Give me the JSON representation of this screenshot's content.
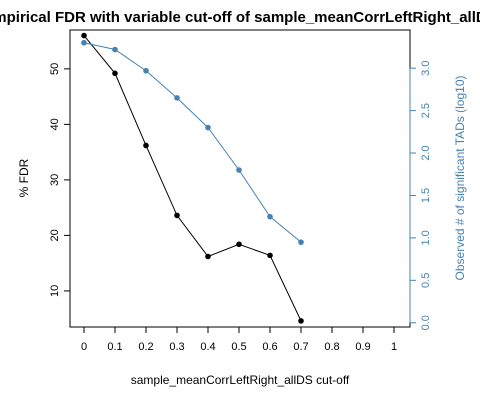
{
  "chart_data": {
    "type": "line",
    "title": "Empirical FDR with variable cut-off of sample_meanCorrLeftRight_allDS",
    "xlabel": "sample_meanCorrLeftRight_allDS cut-off",
    "ylabel_left": "% FDR",
    "ylabel_right": "Observed # of significant TADs (log10)",
    "x_ticks": [
      "0",
      "0.1",
      "0.2",
      "0.3",
      "0.4",
      "0.5",
      "0.6",
      "0.7",
      "0.8",
      "0.9",
      "1"
    ],
    "y_left_ticks": [
      "10",
      "20",
      "30",
      "40",
      "50"
    ],
    "y_right_ticks": [
      "0.0",
      "0.5",
      "1.0",
      "1.5",
      "2.0",
      "2.5",
      "3.0"
    ],
    "xlim": [
      0,
      1
    ],
    "ylim_left": [
      3.5,
      57
    ],
    "ylim_right": [
      -0.05,
      3.45
    ],
    "colors": {
      "fdr": "#000000",
      "observed": "#4682b4"
    },
    "series": [
      {
        "axis": "left",
        "x": [
          0,
          0.1,
          0.2,
          0.3,
          0.4,
          0.5,
          0.6,
          0.7
        ],
        "values": [
          56,
          49.2,
          36.2,
          23.6,
          16.2,
          18.4,
          16.4,
          4.6
        ]
      },
      {
        "axis": "right",
        "x": [
          0,
          0.1,
          0.2,
          0.3,
          0.4,
          0.5,
          0.6,
          0.7
        ],
        "values": [
          3.3,
          3.22,
          2.97,
          2.65,
          2.3,
          1.8,
          1.25,
          0.95
        ]
      }
    ]
  }
}
